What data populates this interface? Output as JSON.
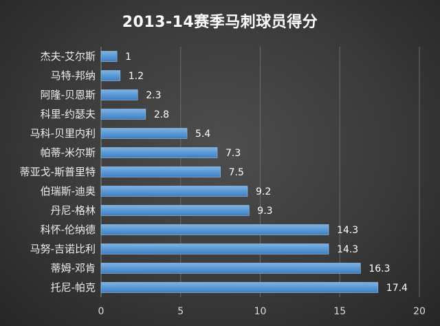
{
  "chart_data": {
    "type": "bar",
    "orientation": "horizontal",
    "title": "2013-14赛季马刺球员得分",
    "categories": [
      "杰夫-艾尔斯",
      "马特-邦纳",
      "阿隆-贝恩斯",
      "科里-约瑟夫",
      "马科-贝里内利",
      "帕蒂-米尔斯",
      "蒂亚戈-斯普里特",
      "伯瑞斯-迪奥",
      "丹尼-格林",
      "科怀-伦纳德",
      "马努-吉诺比利",
      "蒂姆-邓肯",
      "托尼-帕克"
    ],
    "values": [
      1,
      1.2,
      2.3,
      2.8,
      5.4,
      7.3,
      7.5,
      9.2,
      9.3,
      14.3,
      14.3,
      16.3,
      17.4
    ],
    "value_labels": [
      "1",
      "1.2",
      "2.3",
      "2.8",
      "5.4",
      "7.3",
      "7.5",
      "9.2",
      "9.3",
      "14.3",
      "14.3",
      "16.3",
      "17.4"
    ],
    "xlim": [
      0,
      20
    ],
    "xticks": [
      "0",
      "5",
      "10",
      "15",
      "20"
    ],
    "grid": true,
    "bar_color": "#5b9bd5",
    "background_color": "#3a3a3a"
  }
}
